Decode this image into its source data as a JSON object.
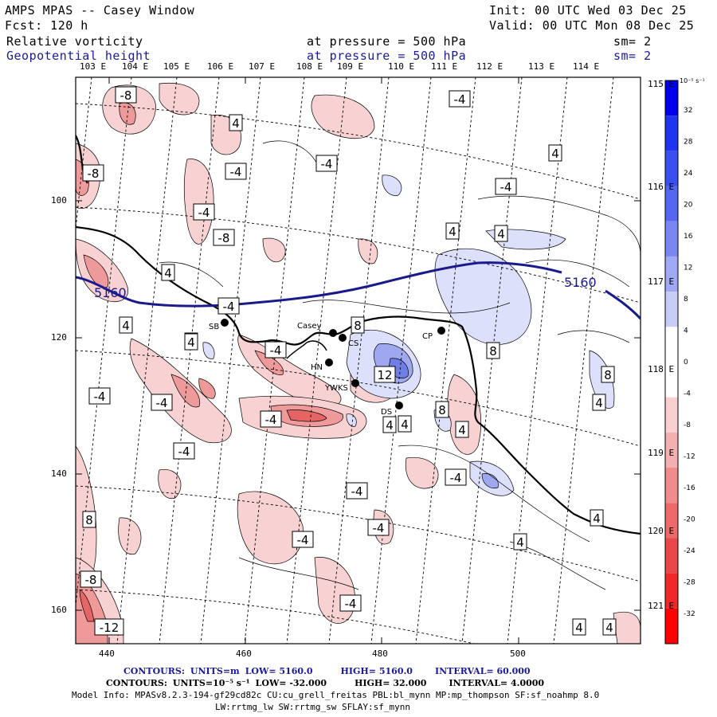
{
  "header": {
    "title": "AMPS MPAS -- Casey Window",
    "init": "Init: 00 UTC Wed 03 Dec 25",
    "forecast": "Fcst:  120 h",
    "valid": "Valid: 00 UTC Mon 08 Dec 25",
    "field1": "Relative vorticity",
    "field1_level": "at pressure =  500 hPa",
    "field1_sm": "sm= 2",
    "field2": "Geopotential height",
    "field2_level": "at pressure =  500 hPa",
    "field2_sm": "sm= 2"
  },
  "lon_labels_top": [
    "103 E",
    "104 E",
    "105 E",
    "106 E",
    "107 E",
    "108 E",
    "109 E",
    "110 E",
    "111 E",
    "112 E",
    "113 E",
    "114 E"
  ],
  "lon_labels_right": [
    "115 E",
    "116 E",
    "117 E",
    "118 E",
    "119 E",
    "120 E",
    "121 E"
  ],
  "x_ticks": [
    "440",
    "460",
    "480",
    "500"
  ],
  "y_ticks": [
    "100",
    "120",
    "140",
    "160"
  ],
  "colorbar": {
    "unit": "10⁻⁵ s⁻¹",
    "labels": [
      "32",
      "28",
      "24",
      "20",
      "16",
      "12",
      "8",
      "4",
      "0",
      "-4",
      "-8",
      "-12",
      "-16",
      "-20",
      "-24",
      "-28",
      "-32"
    ]
  },
  "stations": [
    "SB",
    "Casey",
    "CS",
    "HN",
    "YWKS",
    "DS",
    "CP"
  ],
  "height_contour_labels": [
    "5160",
    "5160"
  ],
  "vort_labels": [
    "-8",
    "4",
    "-4",
    "-4",
    "4",
    "-4",
    "4",
    "-8",
    "-4",
    "-4",
    "-8",
    "4",
    "4",
    "8",
    "-4",
    "4",
    "4",
    "4",
    "-4",
    "8",
    "12",
    "-4",
    "-4",
    "-4",
    "4",
    "8",
    "8",
    "4",
    "4",
    "4",
    "-4",
    "-4",
    "-4",
    "-4",
    "4",
    "4",
    "-4",
    "-8",
    "-12",
    "-4",
    "4",
    "4",
    "8"
  ],
  "footer": {
    "line1_contours": "CONTOURS:",
    "line1_units": "UNITS=m",
    "line1_low": "LOW=  5160.0",
    "line1_high": "HIGH=  5160.0",
    "line1_interval": "INTERVAL=   60.000",
    "line2_contours": "CONTOURS:",
    "line2_units": "UNITS=10⁻⁵ s⁻¹",
    "line2_low": "LOW= -32.000",
    "line2_high": "HIGH=  32.000",
    "line2_interval": "INTERVAL=   4.0000",
    "model_info": "Model Info: MPASv8.2.3-194-gf29cd82c CU:cu_grell_freitas PBL:bl_mynn MP:mp_thompson SF:sf_noahmp 8.0",
    "model_info2": "LW:rrtmg_lw SW:rrtmg_sw SFLAY:sf_mynn"
  }
}
